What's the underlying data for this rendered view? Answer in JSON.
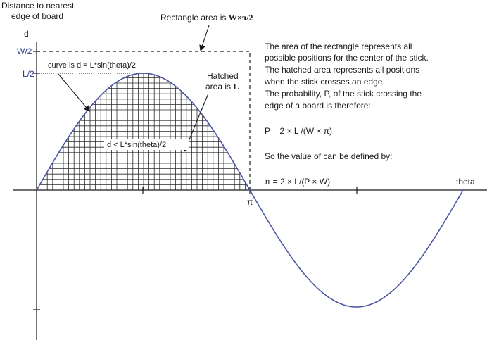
{
  "y_axis_title_line1": "Distance to nearest",
  "y_axis_title_line2": "edge of board",
  "y_axis_symbol": "d",
  "tick_w2": "W/2",
  "tick_l2": "L/2",
  "x_tick_pi": "π",
  "x_axis_label": "theta",
  "rectangle_note_prefix": "Rectangle area is ",
  "rectangle_note_formula": "W×π/2",
  "curve_note": "curve is d = L*sin(theta)/2",
  "hatched_note_line1": "Hatched",
  "hatched_note_line2_prefix": "area is ",
  "hatched_note_symbol": "L",
  "inequality_note": "d < L*sin(theta)/2",
  "explanation": [
    "The area of the rectangle represents all",
    "possible positions for the center of the stick.",
    "The hatched area represents all positions",
    "when the stick crosses an edge.",
    "The probability, P, of the stick crossing the",
    "edge of a board is therefore:"
  ],
  "probability_formula": "P = 2 × L /(W × π)",
  "pi_intro": "So the value of  can be defined by:",
  "pi_formula": "π =  2 × L/(P × W)",
  "colors": {
    "curve": "#4a55a2",
    "text_blue": "#2e3a8c",
    "ink": "#1a1a1a"
  }
}
